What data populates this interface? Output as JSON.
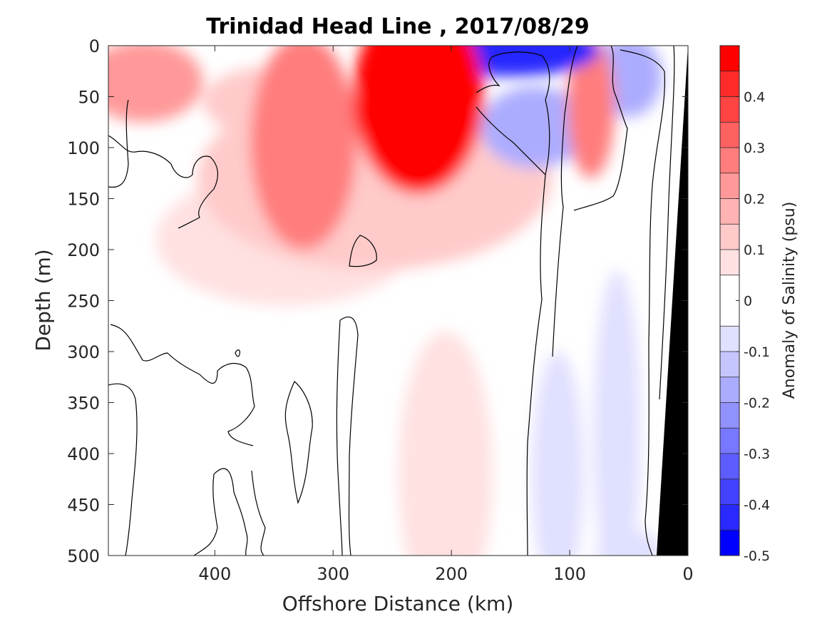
{
  "chart_data": {
    "type": "heatmap",
    "title": "Trinidad Head Line , 2017/08/29",
    "xlabel": "Offshore Distance (km)",
    "ylabel": "Depth (m)",
    "xlim": [
      490,
      0
    ],
    "ylim": [
      0,
      500
    ],
    "x_reversed": true,
    "y_reversed": true,
    "x_ticks": [
      400,
      300,
      200,
      100,
      0
    ],
    "y_ticks": [
      0,
      50,
      100,
      150,
      200,
      250,
      300,
      350,
      400,
      450,
      500
    ],
    "colorbar": {
      "label": "Anomaly of Salinity (psu)",
      "range": [
        -0.5,
        0.5
      ],
      "ticks": [
        0.4,
        0.3,
        0.2,
        0.1,
        0,
        -0.1,
        -0.2,
        -0.3,
        -0.4,
        -0.5
      ],
      "tick_labels": [
        "0.4",
        "0.3",
        "0.2",
        "0.1",
        "0",
        "-0.1",
        "-0.2",
        "-0.3",
        "-0.4",
        "-0.5"
      ],
      "levels": [
        -0.5,
        -0.45,
        -0.4,
        -0.35,
        -0.3,
        -0.25,
        -0.2,
        -0.15,
        -0.1,
        -0.05,
        0.05,
        0.1,
        0.15,
        0.2,
        0.25,
        0.3,
        0.35,
        0.4,
        0.45,
        0.5
      ],
      "colors_pos": [
        "#ffe1e1",
        "#ffcaca",
        "#ffb3b3",
        "#ff9999",
        "#ff7d7d",
        "#ff6161",
        "#ff4444",
        "#ff2a2a",
        "#ff0000"
      ],
      "colors_neg": [
        "#e0e0ff",
        "#c6c6ff",
        "#acacff",
        "#9292ff",
        "#7777ff",
        "#5d5dff",
        "#4242ff",
        "#2828ff",
        "#0000ff"
      ]
    },
    "anomalies": [
      {
        "x": 228,
        "depth": 50,
        "value": 0.47,
        "rx": 55,
        "ry": 95
      },
      {
        "x": 325,
        "depth": 95,
        "value": 0.25,
        "rx": 45,
        "ry": 105
      },
      {
        "x": 460,
        "depth": 35,
        "value": 0.2,
        "rx": 50,
        "ry": 40
      },
      {
        "x": 350,
        "depth": 55,
        "value": 0.12,
        "rx": 60,
        "ry": 35
      },
      {
        "x": 265,
        "depth": 130,
        "value": 0.1,
        "rx": 150,
        "ry": 90
      },
      {
        "x": 340,
        "depth": 190,
        "value": 0.06,
        "rx": 110,
        "ry": 65
      },
      {
        "x": 205,
        "depth": 420,
        "value": 0.06,
        "rx": 40,
        "ry": 140
      },
      {
        "x": 82,
        "depth": 60,
        "value": 0.25,
        "rx": 20,
        "ry": 70
      },
      {
        "x": 150,
        "depth": 5,
        "value": -0.4,
        "rx": 75,
        "ry": 25
      },
      {
        "x": 130,
        "depth": 80,
        "value": -0.18,
        "rx": 45,
        "ry": 40
      },
      {
        "x": 50,
        "depth": 30,
        "value": -0.15,
        "rx": 28,
        "ry": 40
      },
      {
        "x": 110,
        "depth": 420,
        "value": -0.07,
        "rx": 22,
        "ry": 120
      },
      {
        "x": 60,
        "depth": 380,
        "value": -0.07,
        "rx": 20,
        "ry": 160
      },
      {
        "x": 50,
        "depth": 495,
        "value": -0.06,
        "rx": 28,
        "ry": 20
      }
    ],
    "bathymetry": "black region at the coast from 0 km at the surface to about 25 km at 500 m depth"
  }
}
